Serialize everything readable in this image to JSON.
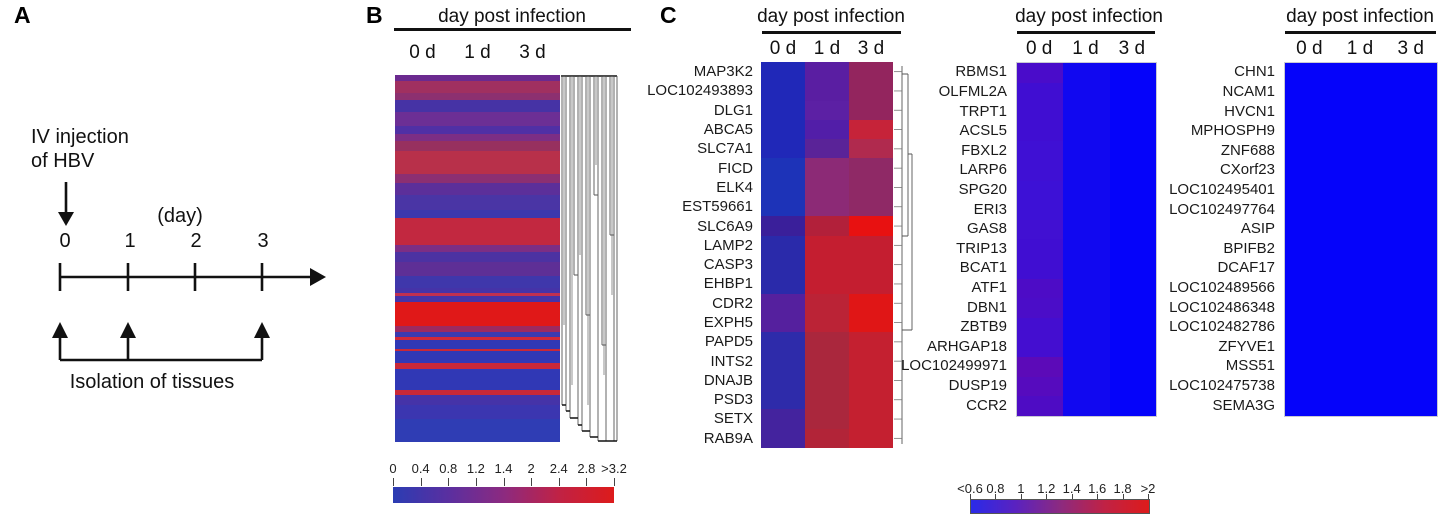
{
  "panelA": {
    "label": "A",
    "injection_line1": "IV injection",
    "injection_line2": "of HBV",
    "axis_unit": "(day)",
    "timeline_ticks": [
      "0",
      "1",
      "2",
      "3"
    ],
    "isolation_label": "Isolation of tissues"
  },
  "panelB": {
    "label": "B",
    "header": "day post infection",
    "columns": [
      "0 d",
      "1 d",
      "3 d"
    ],
    "colorbar_labels": [
      "0",
      "0.4",
      "0.8",
      "1.2",
      "1.4",
      "2",
      "2.4",
      "2.8",
      ">3.2"
    ]
  },
  "panelC": {
    "label": "C",
    "heatmaps": [
      {
        "header": "day post infection",
        "columns": [
          "0 d",
          "1 d",
          "3 d"
        ]
      },
      {
        "header": "day post infection",
        "columns": [
          "0 d",
          "1 d",
          "3 d"
        ]
      },
      {
        "header": "day post infection",
        "columns": [
          "0 d",
          "1 d",
          "3 d"
        ]
      }
    ],
    "colorbar_labels": [
      "<0.6",
      "0.8",
      "1",
      "1.2",
      "1.4",
      "1.6",
      "1.8",
      ">2"
    ]
  },
  "chart_data": [
    {
      "id": "panel-B-clustered-heatmap",
      "type": "heatmap",
      "xlabel": "day post infection",
      "x": [
        "0 d",
        "1 d",
        "3 d"
      ],
      "rows_note": "many unlabeled gene rows, hierarchically clustered with dendrogram at right",
      "colorscale": {
        "tick_labels": [
          "0",
          "0.4",
          "0.8",
          "1.2",
          "1.4",
          "2",
          "2.4",
          "2.8",
          ">3.2"
        ],
        "min": 0,
        "max": 3.2,
        "stops": [
          "#2b3cb3",
          "#5a2fa0",
          "#8c2a80",
          "#c02245",
          "#dd1b1b"
        ]
      },
      "row_stripes": [
        [
          6,
          "#6b2a8f",
          1.7
        ],
        [
          13,
          "#a03060",
          2.2
        ],
        [
          7,
          "#8c3070",
          2.0
        ],
        [
          13,
          "#4633a5",
          1.2
        ],
        [
          14,
          "#6c2f95",
          1.6
        ],
        [
          8,
          "#5030a5",
          1.3
        ],
        [
          8,
          "#7c2e85",
          1.8
        ],
        [
          10,
          "#97305f",
          2.1
        ],
        [
          24,
          "#b8304a",
          2.5
        ],
        [
          10,
          "#8c2f72",
          1.9
        ],
        [
          12,
          "#5c2f9a",
          1.5
        ],
        [
          16,
          "#4a35a5",
          1.2
        ],
        [
          8,
          "#3c38ad",
          1.0
        ],
        [
          28,
          "#c22840",
          2.7
        ],
        [
          7,
          "#7c2e85",
          1.8
        ],
        [
          11,
          "#4c32a2",
          1.3
        ],
        [
          14,
          "#5e2f96",
          1.5
        ],
        [
          13,
          "#3f37ab",
          1.1
        ],
        [
          5,
          "#4533a8",
          1.1
        ],
        [
          3,
          "#c03050",
          2.4
        ],
        [
          6,
          "#4533a8",
          1.1
        ],
        [
          25,
          "#e01818",
          3.2
        ],
        [
          7,
          "#9c2a60",
          2.1
        ],
        [
          5,
          "#3a3ab0",
          0.9
        ],
        [
          3,
          "#d02838",
          2.8
        ],
        [
          9,
          "#3038b5",
          0.8
        ],
        [
          3,
          "#c82838",
          2.7
        ],
        [
          12,
          "#3038b5",
          0.8
        ],
        [
          6,
          "#c82838",
          2.7
        ],
        [
          22,
          "#3038b5",
          0.8
        ],
        [
          5,
          "#c82838",
          2.7
        ],
        [
          11,
          "#4533a8",
          1.1
        ],
        [
          14,
          "#3b36b0",
          0.85
        ],
        [
          24,
          "#2f3db4",
          0.8
        ]
      ]
    },
    {
      "id": "panel-C-heatmap-1",
      "type": "heatmap",
      "xlabel": "day post infection",
      "x": [
        "0 d",
        "1 d",
        "3 d"
      ],
      "genes": [
        "MAP3K2",
        "LOC102493893",
        "DLG1",
        "ABCA5",
        "SLC7A1",
        "FICD",
        "ELK4",
        "EST59661",
        "SLC6A9",
        "LAMP2",
        "CASP3",
        "EHBP1",
        "CDR2",
        "EXPH5",
        "PAPD5",
        "INTS2",
        "DNAJB",
        "PSD3",
        "SETX",
        "RAB9A"
      ],
      "values_estimated": [
        [
          0.7,
          1.1,
          1.5
        ],
        [
          0.7,
          1.1,
          1.5
        ],
        [
          0.7,
          1.1,
          1.5
        ],
        [
          0.7,
          1.1,
          1.9
        ],
        [
          0.7,
          1.1,
          1.7
        ],
        [
          0.7,
          1.4,
          1.5
        ],
        [
          0.7,
          1.4,
          1.5
        ],
        [
          0.7,
          1.4,
          1.5
        ],
        [
          0.9,
          1.7,
          2.1
        ],
        [
          0.8,
          1.8,
          1.8
        ],
        [
          0.8,
          1.8,
          1.8
        ],
        [
          0.8,
          1.8,
          1.8
        ],
        [
          1.0,
          1.7,
          2.0
        ],
        [
          1.0,
          1.7,
          2.0
        ],
        [
          0.8,
          1.6,
          1.8
        ],
        [
          0.8,
          1.6,
          1.8
        ],
        [
          0.8,
          1.6,
          1.8
        ],
        [
          0.8,
          1.6,
          1.8
        ],
        [
          0.9,
          1.6,
          1.8
        ],
        [
          0.9,
          1.7,
          1.8
        ]
      ],
      "row_colors": [
        [
          "#2028b8",
          "#5a1ea2",
          "#93255e"
        ],
        [
          "#2028b8",
          "#5a1ea2",
          "#93255e"
        ],
        [
          "#2028b8",
          "#5c20a4",
          "#93255e"
        ],
        [
          "#2028b8",
          "#521ea8",
          "#c62339"
        ],
        [
          "#2028b8",
          "#5a2398",
          "#b02a4e"
        ],
        [
          "#1d33b8",
          "#8c2a76",
          "#8f2966"
        ],
        [
          "#1d33b8",
          "#8c2a76",
          "#8f2966"
        ],
        [
          "#1d33b8",
          "#8c2a76",
          "#8f2966"
        ],
        [
          "#3a1f9a",
          "#b2203a",
          "#e81111"
        ],
        [
          "#2a2aaa",
          "#c41e30",
          "#c41e30"
        ],
        [
          "#2a2aaa",
          "#c41e30",
          "#c41e30"
        ],
        [
          "#2a2aaa",
          "#c41e30",
          "#c41e30"
        ],
        [
          "#55209e",
          "#bb2336",
          "#e01616"
        ],
        [
          "#55209e",
          "#bb2336",
          "#e01616"
        ],
        [
          "#2e2baa",
          "#aa273d",
          "#c42030"
        ],
        [
          "#2e2baa",
          "#aa273d",
          "#c42030"
        ],
        [
          "#2e2baa",
          "#aa273d",
          "#c42030"
        ],
        [
          "#2e2baa",
          "#aa273d",
          "#c42030"
        ],
        [
          "#44239e",
          "#aa273d",
          "#c42030"
        ],
        [
          "#44239e",
          "#b22438",
          "#c42030"
        ]
      ],
      "colorscale": {
        "tick_labels": [
          "<0.6",
          "0.8",
          "1",
          "1.2",
          "1.4",
          "1.6",
          "1.8",
          ">2"
        ],
        "stops": [
          "#2a2ae8",
          "#5a22c0",
          "#8c2a80",
          "#c02245",
          "#dd1b1b"
        ]
      }
    },
    {
      "id": "panel-C-heatmap-2",
      "type": "heatmap",
      "xlabel": "day post infection",
      "x": [
        "0 d",
        "1 d",
        "3 d"
      ],
      "genes": [
        "RBMS1",
        "OLFML2A",
        "TRPT1",
        "ACSL5",
        "FBXL2",
        "LARP6",
        "SPG20",
        "ERI3",
        "GAS8",
        "TRIP13",
        "BCAT1",
        "ATF1",
        "DBN1",
        "ZBTB9",
        "ARHGAP18",
        "LOC102499971",
        "DUSP19",
        "CCR2"
      ],
      "values_estimated": [
        [
          0.9,
          0.6,
          0.5
        ],
        [
          0.9,
          0.6,
          0.5
        ],
        [
          0.9,
          0.6,
          0.5
        ],
        [
          0.9,
          0.6,
          0.5
        ],
        [
          0.9,
          0.6,
          0.5
        ],
        [
          0.9,
          0.6,
          0.5
        ],
        [
          0.9,
          0.6,
          0.5
        ],
        [
          0.9,
          0.6,
          0.5
        ],
        [
          0.9,
          0.6,
          0.5
        ],
        [
          0.9,
          0.6,
          0.5
        ],
        [
          0.9,
          0.6,
          0.5
        ],
        [
          0.95,
          0.6,
          0.5
        ],
        [
          0.95,
          0.6,
          0.5
        ],
        [
          0.9,
          0.6,
          0.5
        ],
        [
          0.9,
          0.6,
          0.5
        ],
        [
          1.0,
          0.6,
          0.5
        ],
        [
          1.0,
          0.6,
          0.5
        ],
        [
          0.95,
          0.6,
          0.5
        ]
      ],
      "row_colors": [
        [
          "#4a0cca",
          "#1108f0",
          "#0503fa"
        ],
        [
          "#400ed2",
          "#1108f0",
          "#0503fa"
        ],
        [
          "#400ed2",
          "#1108f0",
          "#0503fa"
        ],
        [
          "#400ed2",
          "#1108f0",
          "#0503fa"
        ],
        [
          "#3f10d4",
          "#1108f0",
          "#0503fa"
        ],
        [
          "#3f10d4",
          "#1108f0",
          "#0503fa"
        ],
        [
          "#3d11d6",
          "#1108f0",
          "#0503fa"
        ],
        [
          "#3d11d6",
          "#1108f0",
          "#0503fa"
        ],
        [
          "#4110d2",
          "#1108f0",
          "#0503fa"
        ],
        [
          "#400ed2",
          "#1108f0",
          "#0503fa"
        ],
        [
          "#400ed2",
          "#1108f0",
          "#0503fa"
        ],
        [
          "#4d0cc6",
          "#1108f0",
          "#0503fa"
        ],
        [
          "#4b0dc8",
          "#1108f0",
          "#0503fa"
        ],
        [
          "#440ed0",
          "#1108f0",
          "#0503fa"
        ],
        [
          "#440ed0",
          "#1108f0",
          "#0503fa"
        ],
        [
          "#5c0ab8",
          "#1108f0",
          "#0503fa"
        ],
        [
          "#560bbe",
          "#1108f0",
          "#0503fa"
        ],
        [
          "#4e0cc4",
          "#1108f0",
          "#0503fa"
        ]
      ]
    },
    {
      "id": "panel-C-heatmap-3",
      "type": "heatmap",
      "xlabel": "day post infection",
      "x": [
        "0 d",
        "1 d",
        "3 d"
      ],
      "genes": [
        "CHN1",
        "NCAM1",
        "HVCN1",
        "MPHOSPH9",
        "ZNF688",
        "CXorf23",
        "LOC102495401",
        "LOC102497764",
        "ASIP",
        "BPIFB2",
        "DCAF17",
        "LOC102489566",
        "LOC102486348",
        "LOC102482786",
        "ZFYVE1",
        "MSS51",
        "LOC102475738",
        "SEMA3G"
      ],
      "values_estimated": [
        [
          0.5,
          0.5,
          0.5
        ],
        [
          0.5,
          0.5,
          0.5
        ],
        [
          0.5,
          0.5,
          0.5
        ],
        [
          0.5,
          0.5,
          0.5
        ],
        [
          0.5,
          0.5,
          0.5
        ],
        [
          0.5,
          0.5,
          0.5
        ],
        [
          0.5,
          0.5,
          0.5
        ],
        [
          0.5,
          0.5,
          0.5
        ],
        [
          0.5,
          0.5,
          0.5
        ],
        [
          0.5,
          0.5,
          0.5
        ],
        [
          0.5,
          0.5,
          0.5
        ],
        [
          0.5,
          0.5,
          0.5
        ],
        [
          0.5,
          0.5,
          0.5
        ],
        [
          0.5,
          0.5,
          0.5
        ],
        [
          0.5,
          0.5,
          0.5
        ],
        [
          0.5,
          0.5,
          0.5
        ],
        [
          0.5,
          0.5,
          0.5
        ],
        [
          0.5,
          0.5,
          0.5
        ]
      ],
      "row_colors": [
        [
          "#0503fa",
          "#0503fa",
          "#0503fa"
        ],
        [
          "#0503fa",
          "#0503fa",
          "#0503fa"
        ],
        [
          "#0503fa",
          "#0503fa",
          "#0503fa"
        ],
        [
          "#0503fa",
          "#0503fa",
          "#0503fa"
        ],
        [
          "#0503fa",
          "#0503fa",
          "#0503fa"
        ],
        [
          "#0503fa",
          "#0503fa",
          "#0503fa"
        ],
        [
          "#0503fa",
          "#0503fa",
          "#0503fa"
        ],
        [
          "#0503fa",
          "#0503fa",
          "#0503fa"
        ],
        [
          "#0503fa",
          "#0503fa",
          "#0503fa"
        ],
        [
          "#0503fa",
          "#0503fa",
          "#0503fa"
        ],
        [
          "#0503fa",
          "#0503fa",
          "#0503fa"
        ],
        [
          "#0503fa",
          "#0503fa",
          "#0503fa"
        ],
        [
          "#0503fa",
          "#0503fa",
          "#0503fa"
        ],
        [
          "#0503fa",
          "#0503fa",
          "#0503fa"
        ],
        [
          "#0503fa",
          "#0503fa",
          "#0503fa"
        ],
        [
          "#0503fa",
          "#0503fa",
          "#0503fa"
        ],
        [
          "#0503fa",
          "#0503fa",
          "#0503fa"
        ],
        [
          "#0503fa",
          "#0503fa",
          "#0503fa"
        ]
      ]
    }
  ]
}
